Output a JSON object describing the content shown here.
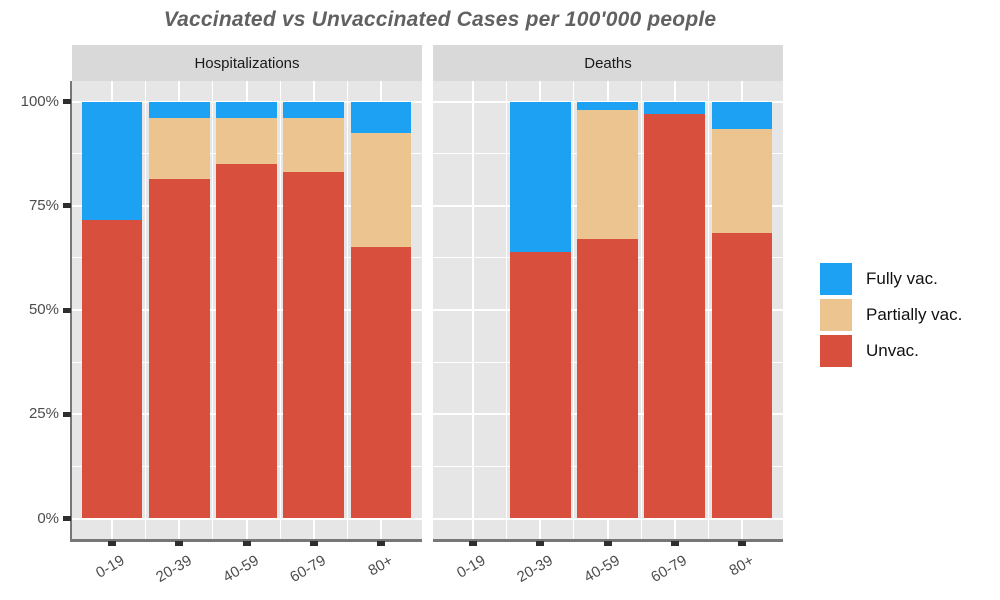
{
  "title": "Vaccinated vs Unvaccinated Cases per 100'000 people",
  "chart_data": {
    "type": "bar",
    "stacked": true,
    "normalized": "percent",
    "title": "Vaccinated vs Unvaccinated Cases per 100'000 people",
    "categories": [
      "0-19",
      "20-39",
      "40-59",
      "60-79",
      "80+"
    ],
    "y_axis": {
      "tick_labels": [
        "0%",
        "25%",
        "50%",
        "75%",
        "100%"
      ],
      "ticks_pct": [
        0,
        25,
        50,
        75,
        100
      ],
      "minor_pct": [
        12.5,
        37.5,
        62.5,
        87.5
      ],
      "ylim": [
        0,
        100
      ],
      "grid": true
    },
    "facets": [
      {
        "label": "Hospitalizations",
        "series": [
          {
            "name": "Unvac.",
            "color": "#d8503d",
            "values": [
              71.5,
              81.5,
              85,
              83,
              65
            ]
          },
          {
            "name": "Partially vac.",
            "color": "#ecc48f",
            "values": [
              0,
              14.5,
              11,
              13,
              27.5
            ]
          },
          {
            "name": "Fully vac.",
            "color": "#1da1f2",
            "values": [
              28.5,
              4,
              4,
              4,
              7.5
            ]
          }
        ]
      },
      {
        "label": "Deaths",
        "series": [
          {
            "name": "Unvac.",
            "color": "#d8503d",
            "values": [
              null,
              64,
              67,
              97,
              68.5
            ]
          },
          {
            "name": "Partially vac.",
            "color": "#ecc48f",
            "values": [
              null,
              0,
              31,
              0,
              25
            ]
          },
          {
            "name": "Fully vac.",
            "color": "#1da1f2",
            "values": [
              null,
              36,
              2,
              3,
              6.5
            ]
          }
        ]
      }
    ],
    "legend": {
      "position": "right",
      "entries": [
        {
          "label": "Fully vac.",
          "color": "#1da1f2"
        },
        {
          "label": "Partially vac.",
          "color": "#ecc48f"
        },
        {
          "label": "Unvac.",
          "color": "#d8503d"
        }
      ]
    },
    "colors": {
      "panel_bg": "#e6e6e6",
      "strip_bg": "#d9d9d9",
      "gridline": "#ffffff",
      "axis_line": "#777777",
      "tick": "#2e2e2e",
      "axis_text": "#4d4d4d",
      "title_text": "#616161",
      "strip_text": "#1a1a1a",
      "legend_text": "#111111"
    }
  }
}
